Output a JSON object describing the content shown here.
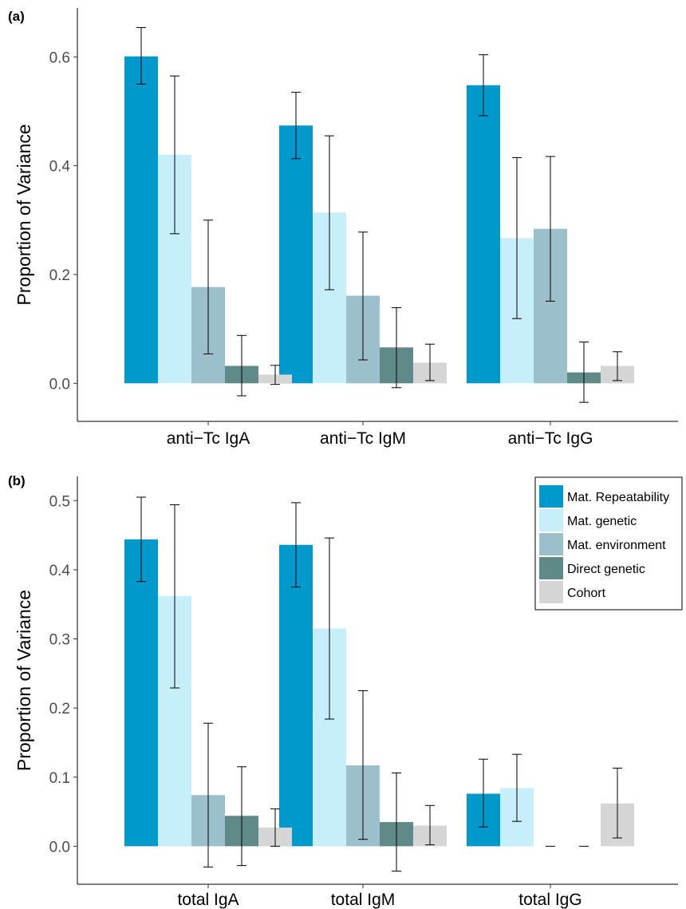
{
  "chart_data": [
    {
      "type": "bar",
      "panel_label": "(a)",
      "ylabel": "Proportion of Variance",
      "xlabel": "",
      "categories": [
        "anti−Tc IgA",
        "anti−Tc IgM",
        "anti−Tc IgG"
      ],
      "ylim": [
        -0.07,
        0.69
      ],
      "yticks": [
        0.0,
        0.2,
        0.4,
        0.6
      ],
      "ytick_labels": [
        "0.0",
        "0.2",
        "0.4",
        "0.6"
      ],
      "grid": false,
      "series": [
        {
          "name": "Mat. Repeatability",
          "color": "#0099cc",
          "values": [
            0.601,
            0.474,
            0.548
          ],
          "err_low": [
            0.55,
            0.413,
            0.492
          ],
          "err_high": [
            0.654,
            0.535,
            0.604
          ]
        },
        {
          "name": "Mat. genetic",
          "color": "#c6eefb",
          "values": [
            0.42,
            0.314,
            0.267
          ],
          "err_low": [
            0.275,
            0.172,
            0.119
          ],
          "err_high": [
            0.565,
            0.455,
            0.415
          ]
        },
        {
          "name": "Mat. environment",
          "color": "#9bbfcb",
          "values": [
            0.177,
            0.161,
            0.284
          ],
          "err_low": [
            0.054,
            0.043,
            0.151
          ],
          "err_high": [
            0.3,
            0.278,
            0.417
          ]
        },
        {
          "name": "Direct genetic",
          "color": "#5f8a87",
          "values": [
            0.032,
            0.066,
            0.02
          ],
          "err_low": [
            -0.023,
            -0.008,
            -0.035
          ],
          "err_high": [
            0.088,
            0.139,
            0.076
          ]
        },
        {
          "name": "Cohort",
          "color": "#d6d6d6",
          "values": [
            0.016,
            0.038,
            0.032
          ],
          "err_low": [
            -0.002,
            0.005,
            0.005
          ],
          "err_high": [
            0.033,
            0.072,
            0.058
          ]
        }
      ]
    },
    {
      "type": "bar",
      "panel_label": "(b)",
      "ylabel": "Proportion of Variance",
      "xlabel": "",
      "categories": [
        "total IgA",
        "total IgM",
        "total IgG"
      ],
      "ylim": [
        -0.055,
        0.535
      ],
      "yticks": [
        0.0,
        0.1,
        0.2,
        0.3,
        0.4,
        0.5
      ],
      "ytick_labels": [
        "0.0",
        "0.1",
        "0.2",
        "0.3",
        "0.4",
        "0.5"
      ],
      "grid": false,
      "legend_position": "top-right",
      "series": [
        {
          "name": "Mat. Repeatability",
          "color": "#0099cc",
          "values": [
            0.444,
            0.436,
            0.076
          ],
          "err_low": [
            0.383,
            0.375,
            0.028
          ],
          "err_high": [
            0.505,
            0.497,
            0.126
          ]
        },
        {
          "name": "Mat. genetic",
          "color": "#c6eefb",
          "values": [
            0.362,
            0.315,
            0.084
          ],
          "err_low": [
            0.229,
            0.184,
            0.036
          ],
          "err_high": [
            0.494,
            0.446,
            0.133
          ]
        },
        {
          "name": "Mat. environment",
          "color": "#9bbfcb",
          "values": [
            0.074,
            0.117,
            0.0
          ],
          "err_low": [
            -0.03,
            0.01,
            0.0
          ],
          "err_high": [
            0.178,
            0.225,
            0.0
          ]
        },
        {
          "name": "Direct genetic",
          "color": "#5f8a87",
          "values": [
            0.044,
            0.035,
            0.0
          ],
          "err_low": [
            -0.028,
            -0.036,
            0.0
          ],
          "err_high": [
            0.115,
            0.106,
            0.0
          ]
        },
        {
          "name": "Cohort",
          "color": "#d6d6d6",
          "values": [
            0.027,
            0.03,
            0.062
          ],
          "err_low": [
            0.0,
            0.002,
            0.012
          ],
          "err_high": [
            0.054,
            0.059,
            0.113
          ]
        }
      ]
    }
  ]
}
